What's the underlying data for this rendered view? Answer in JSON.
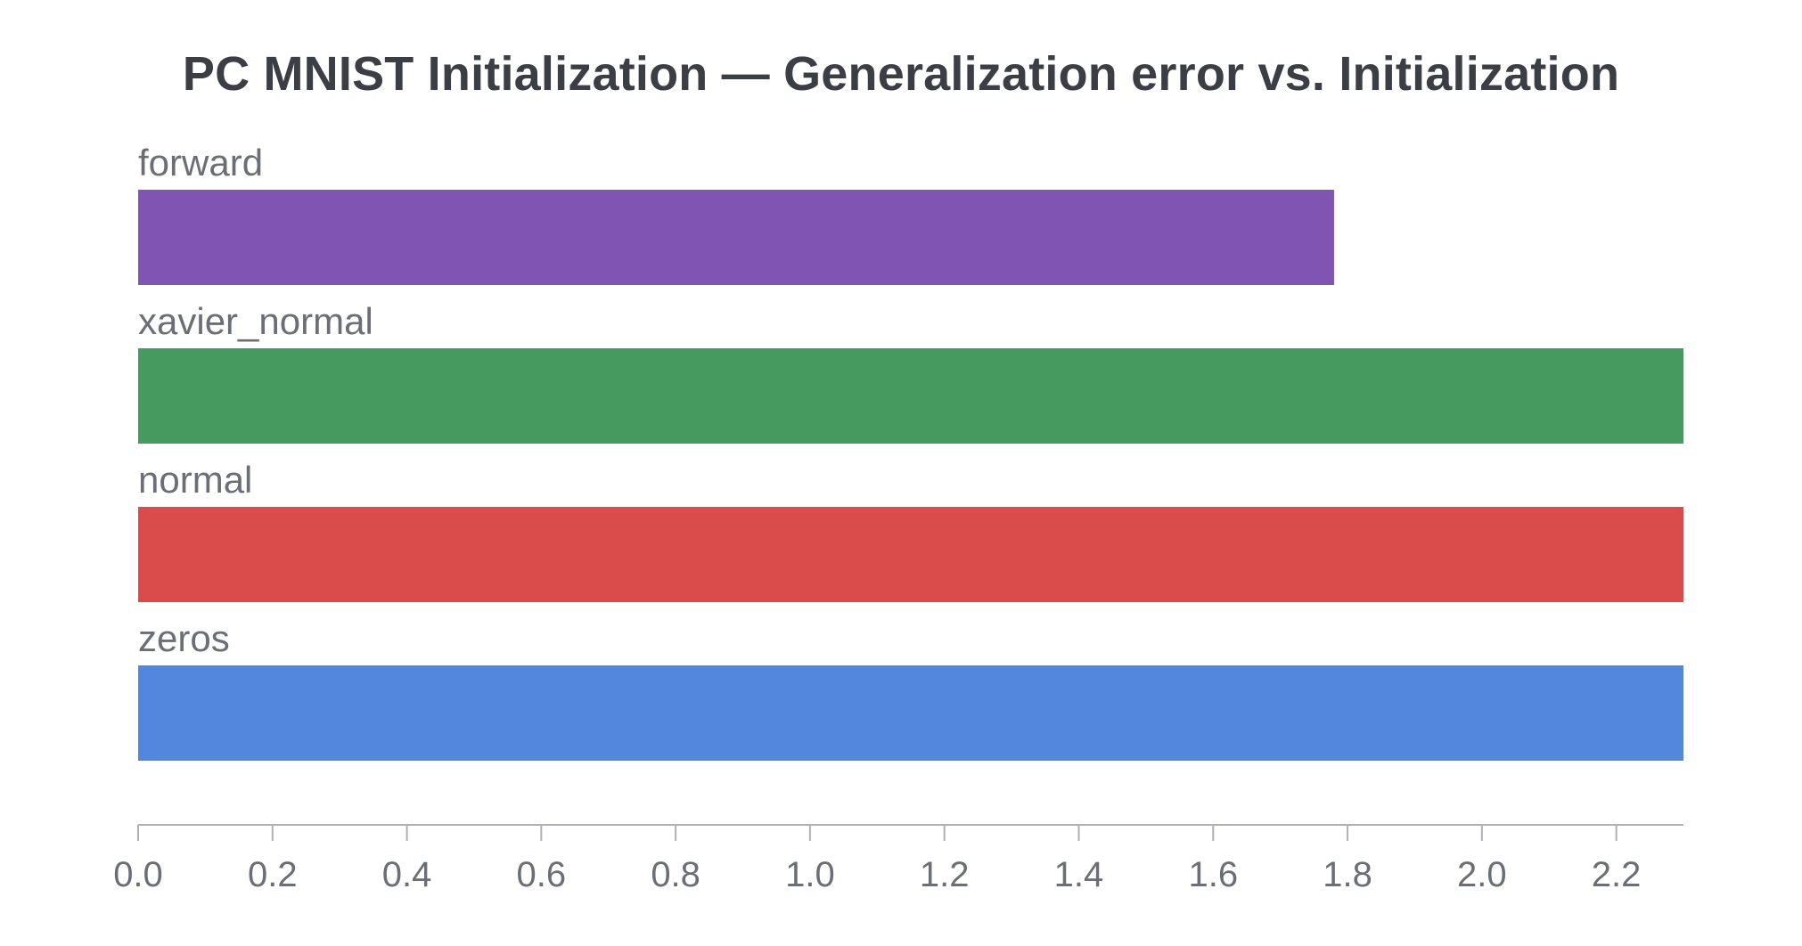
{
  "chart_data": {
    "type": "bar",
    "orientation": "horizontal",
    "title": "PC MNIST Initialization — Generalization error vs. Initialization",
    "categories": [
      "forward",
      "xavier_normal",
      "normal",
      "zeros"
    ],
    "values": [
      1.78,
      2.3,
      2.3,
      2.3
    ],
    "colors": [
      "#7f54b3",
      "#479a5f",
      "#da4c4c",
      "#5387dd"
    ],
    "xlim": [
      0,
      2.3
    ],
    "xticks": [
      0.0,
      0.2,
      0.4,
      0.6,
      0.8,
      1.0,
      1.2,
      1.4,
      1.6,
      1.8,
      2.0,
      2.2
    ],
    "xtick_labels": [
      "0.0",
      "0.2",
      "0.4",
      "0.6",
      "0.8",
      "1.0",
      "1.2",
      "1.4",
      "1.6",
      "1.8",
      "2.0",
      "2.2"
    ],
    "xlabel": "",
    "ylabel": "",
    "grid": false,
    "legend": "none"
  },
  "colors": {
    "title": "#3b3e44",
    "label": "#6b6e76",
    "axis": "#aeb0b5"
  }
}
